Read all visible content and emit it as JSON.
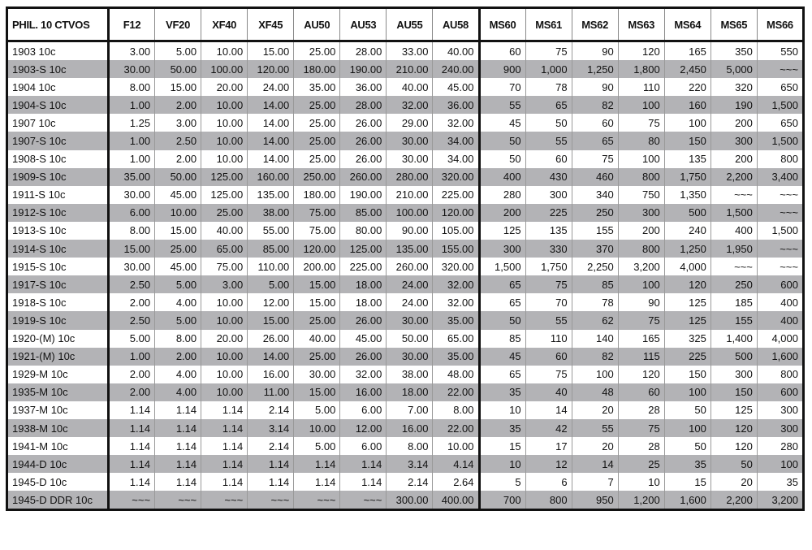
{
  "table": {
    "header": [
      "PHIL. 10 CTVOS",
      "F12",
      "VF20",
      "XF40",
      "XF45",
      "AU50",
      "AU53",
      "AU55",
      "AU58",
      "MS60",
      "MS61",
      "MS62",
      "MS63",
      "MS64",
      "MS65",
      "MS66"
    ],
    "rows": [
      [
        "1903 10c",
        "3.00",
        "5.00",
        "10.00",
        "15.00",
        "25.00",
        "28.00",
        "33.00",
        "40.00",
        "60",
        "75",
        "90",
        "120",
        "165",
        "350",
        "550"
      ],
      [
        "1903-S 10c",
        "30.00",
        "50.00",
        "100.00",
        "120.00",
        "180.00",
        "190.00",
        "210.00",
        "240.00",
        "900",
        "1,000",
        "1,250",
        "1,800",
        "2,450",
        "5,000",
        "~~~"
      ],
      [
        "1904 10c",
        "8.00",
        "15.00",
        "20.00",
        "24.00",
        "35.00",
        "36.00",
        "40.00",
        "45.00",
        "70",
        "78",
        "90",
        "110",
        "220",
        "320",
        "650"
      ],
      [
        "1904-S 10c",
        "1.00",
        "2.00",
        "10.00",
        "14.00",
        "25.00",
        "28.00",
        "32.00",
        "36.00",
        "55",
        "65",
        "82",
        "100",
        "160",
        "190",
        "1,500"
      ],
      [
        "1907 10c",
        "1.25",
        "3.00",
        "10.00",
        "14.00",
        "25.00",
        "26.00",
        "29.00",
        "32.00",
        "45",
        "50",
        "60",
        "75",
        "100",
        "200",
        "650"
      ],
      [
        "1907-S 10c",
        "1.00",
        "2.50",
        "10.00",
        "14.00",
        "25.00",
        "26.00",
        "30.00",
        "34.00",
        "50",
        "55",
        "65",
        "80",
        "150",
        "300",
        "1,500"
      ],
      [
        "1908-S 10c",
        "1.00",
        "2.00",
        "10.00",
        "14.00",
        "25.00",
        "26.00",
        "30.00",
        "34.00",
        "50",
        "60",
        "75",
        "100",
        "135",
        "200",
        "800"
      ],
      [
        "1909-S 10c",
        "35.00",
        "50.00",
        "125.00",
        "160.00",
        "250.00",
        "260.00",
        "280.00",
        "320.00",
        "400",
        "430",
        "460",
        "800",
        "1,750",
        "2,200",
        "3,400"
      ],
      [
        "1911-S 10c",
        "30.00",
        "45.00",
        "125.00",
        "135.00",
        "180.00",
        "190.00",
        "210.00",
        "225.00",
        "280",
        "300",
        "340",
        "750",
        "1,350",
        "~~~",
        "~~~"
      ],
      [
        "1912-S 10c",
        "6.00",
        "10.00",
        "25.00",
        "38.00",
        "75.00",
        "85.00",
        "100.00",
        "120.00",
        "200",
        "225",
        "250",
        "300",
        "500",
        "1,500",
        "~~~"
      ],
      [
        "1913-S 10c",
        "8.00",
        "15.00",
        "40.00",
        "55.00",
        "75.00",
        "80.00",
        "90.00",
        "105.00",
        "125",
        "135",
        "155",
        "200",
        "240",
        "400",
        "1,500"
      ],
      [
        "1914-S 10c",
        "15.00",
        "25.00",
        "65.00",
        "85.00",
        "120.00",
        "125.00",
        "135.00",
        "155.00",
        "300",
        "330",
        "370",
        "800",
        "1,250",
        "1,950",
        "~~~"
      ],
      [
        "1915-S 10c",
        "30.00",
        "45.00",
        "75.00",
        "110.00",
        "200.00",
        "225.00",
        "260.00",
        "320.00",
        "1,500",
        "1,750",
        "2,250",
        "3,200",
        "4,000",
        "~~~",
        "~~~"
      ],
      [
        "1917-S 10c",
        "2.50",
        "5.00",
        "3.00",
        "5.00",
        "15.00",
        "18.00",
        "24.00",
        "32.00",
        "65",
        "75",
        "85",
        "100",
        "120",
        "250",
        "600"
      ],
      [
        "1918-S 10c",
        "2.00",
        "4.00",
        "10.00",
        "12.00",
        "15.00",
        "18.00",
        "24.00",
        "32.00",
        "65",
        "70",
        "78",
        "90",
        "125",
        "185",
        "400"
      ],
      [
        "1919-S 10c",
        "2.50",
        "5.00",
        "10.00",
        "15.00",
        "25.00",
        "26.00",
        "30.00",
        "35.00",
        "50",
        "55",
        "62",
        "75",
        "125",
        "155",
        "400"
      ],
      [
        "1920-(M) 10c",
        "5.00",
        "8.00",
        "20.00",
        "26.00",
        "40.00",
        "45.00",
        "50.00",
        "65.00",
        "85",
        "110",
        "140",
        "165",
        "325",
        "1,400",
        "4,000"
      ],
      [
        "1921-(M) 10c",
        "1.00",
        "2.00",
        "10.00",
        "14.00",
        "25.00",
        "26.00",
        "30.00",
        "35.00",
        "45",
        "60",
        "82",
        "115",
        "225",
        "500",
        "1,600"
      ],
      [
        "1929-M 10c",
        "2.00",
        "4.00",
        "10.00",
        "16.00",
        "30.00",
        "32.00",
        "38.00",
        "48.00",
        "65",
        "75",
        "100",
        "120",
        "150",
        "300",
        "800"
      ],
      [
        "1935-M 10c",
        "2.00",
        "4.00",
        "10.00",
        "11.00",
        "15.00",
        "16.00",
        "18.00",
        "22.00",
        "35",
        "40",
        "48",
        "60",
        "100",
        "150",
        "600"
      ],
      [
        "1937-M 10c",
        "1.14",
        "1.14",
        "1.14",
        "2.14",
        "5.00",
        "6.00",
        "7.00",
        "8.00",
        "10",
        "14",
        "20",
        "28",
        "50",
        "125",
        "300"
      ],
      [
        "1938-M 10c",
        "1.14",
        "1.14",
        "1.14",
        "3.14",
        "10.00",
        "12.00",
        "16.00",
        "22.00",
        "35",
        "42",
        "55",
        "75",
        "100",
        "120",
        "300"
      ],
      [
        "1941-M 10c",
        "1.14",
        "1.14",
        "1.14",
        "2.14",
        "5.00",
        "6.00",
        "8.00",
        "10.00",
        "15",
        "17",
        "20",
        "28",
        "50",
        "120",
        "280"
      ],
      [
        "1944-D 10c",
        "1.14",
        "1.14",
        "1.14",
        "1.14",
        "1.14",
        "1.14",
        "3.14",
        "4.14",
        "10",
        "12",
        "14",
        "25",
        "35",
        "50",
        "100"
      ],
      [
        "1945-D 10c",
        "1.14",
        "1.14",
        "1.14",
        "1.14",
        "1.14",
        "1.14",
        "2.14",
        "2.64",
        "5",
        "6",
        "7",
        "10",
        "15",
        "20",
        "35"
      ],
      [
        "1945-D DDR 10c",
        "~~~",
        "~~~",
        "~~~",
        "~~~",
        "~~~",
        "~~~",
        "300.00",
        "400.00",
        "700",
        "800",
        "950",
        "1,200",
        "1,600",
        "2,200",
        "3,200"
      ]
    ]
  }
}
